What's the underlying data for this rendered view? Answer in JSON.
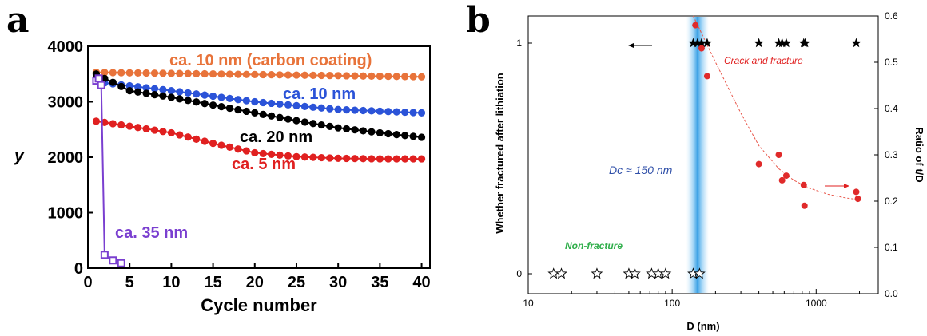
{
  "panel_labels": {
    "a": "a",
    "b": "b"
  },
  "chart_data": [
    {
      "type": "line",
      "xlabel": "Cycle number",
      "ylabel": "y",
      "xlim": [
        0,
        41
      ],
      "ylim": [
        0,
        4000
      ],
      "x_ticks": [
        0,
        5,
        10,
        15,
        20,
        25,
        30,
        35,
        40
      ],
      "y_ticks": [
        0,
        1000,
        2000,
        3000,
        4000
      ],
      "grid": false,
      "series": [
        {
          "name": "ca. 10 nm (carbon coating)",
          "color": "#e8733a",
          "marker": "filled-circle",
          "x": [
            1,
            40
          ],
          "y": [
            3530,
            3450
          ]
        },
        {
          "name": "ca. 10 nm",
          "color": "#2b53d8",
          "marker": "filled-circle",
          "x": [
            1,
            2,
            10,
            20,
            30,
            40
          ],
          "y": [
            3380,
            3340,
            3200,
            3000,
            2860,
            2800
          ]
        },
        {
          "name": "ca. 20 nm",
          "color": "#000000",
          "marker": "filled-circle",
          "x": [
            1,
            2,
            3,
            5,
            10,
            15,
            20,
            25,
            30,
            35,
            40
          ],
          "y": [
            3500,
            3420,
            3350,
            3200,
            3080,
            2940,
            2800,
            2660,
            2530,
            2440,
            2360
          ]
        },
        {
          "name": "ca. 5 nm",
          "color": "#e02020",
          "marker": "filled-circle",
          "x": [
            1,
            5,
            10,
            15,
            20,
            25,
            30,
            35,
            40
          ],
          "y": [
            2650,
            2560,
            2440,
            2250,
            2080,
            2010,
            1980,
            1970,
            1970
          ]
        },
        {
          "name": "ca. 35 nm",
          "color": "#7a3fd0",
          "marker": "open-square",
          "x": [
            1,
            1.3,
            1.6,
            2,
            3,
            4
          ],
          "y": [
            3380,
            3420,
            3300,
            240,
            140,
            90
          ]
        }
      ]
    },
    {
      "type": "scatter",
      "xlabel": "D (nm)",
      "ylabel_left": "Whether fractured after lithiation",
      "ylabel_right": "Ratio of t/D",
      "xscale": "log",
      "xlim": [
        10,
        2700
      ],
      "x_ticks": [
        10,
        100,
        1000
      ],
      "ylim_left": [
        0,
        1
      ],
      "y_ticks_left": [
        0,
        1
      ],
      "ylim_right": [
        0,
        0.6
      ],
      "y_ticks_right": [
        "0.0",
        "0.1",
        "0.2",
        "0.3",
        "0.4",
        "0.5",
        "0.6"
      ],
      "critical_band_label": "Dc ≈ 150 nm",
      "critical_diameter": 150,
      "annotations": [
        "Crack and fracture",
        "Non-fracture"
      ],
      "fractured_D": [
        140,
        150,
        160,
        175,
        400,
        550,
        580,
        620,
        820,
        840,
        1900
      ],
      "non_fractured_D": [
        15,
        17,
        30,
        50,
        55,
        72,
        80,
        90,
        140,
        155
      ],
      "ratio_points": {
        "x": [
          145,
          160,
          175,
          400,
          550,
          580,
          620,
          820,
          830,
          1900,
          1950
        ],
        "y": [
          0.58,
          0.53,
          0.47,
          0.28,
          0.3,
          0.245,
          0.255,
          0.235,
          0.19,
          0.22,
          0.205
        ]
      },
      "ratio_fit": {
        "x": [
          140,
          200,
          300,
          400,
          550,
          700,
          900,
          1200,
          1600,
          2000
        ],
        "y": [
          0.6,
          0.5,
          0.39,
          0.32,
          0.27,
          0.245,
          0.228,
          0.215,
          0.207,
          0.203
        ]
      }
    }
  ]
}
